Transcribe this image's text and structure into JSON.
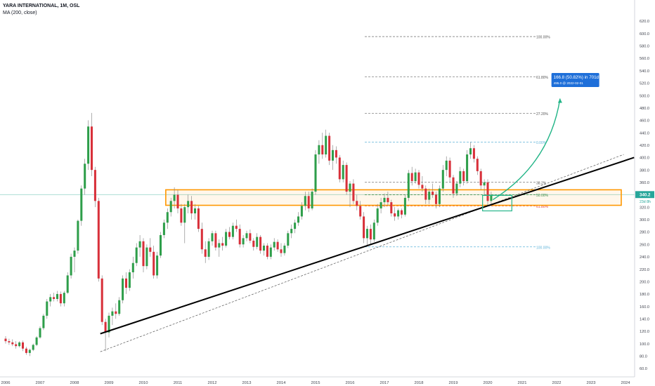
{
  "header": {
    "title": "YARA INTERNATIONAL, 1M, OSL",
    "indicator": "MA (200, close)"
  },
  "chart_data": {
    "type": "candlestick",
    "x_axis": {
      "labels": [
        "2006",
        "2007",
        "2008",
        "2009",
        "2010",
        "2011",
        "2012",
        "2013",
        "2014",
        "2015",
        "2016",
        "2017",
        "2018",
        "2019",
        "2020",
        "2021",
        "2022",
        "2023",
        "2024"
      ],
      "range": [
        2006.0,
        2024.3
      ]
    },
    "y_axis": {
      "labels": [
        "60.0",
        "80.0",
        "100.0",
        "120.0",
        "140.0",
        "160.0",
        "180.0",
        "200.0",
        "220.0",
        "240.0",
        "260.0",
        "280.0",
        "300.0",
        "320.0",
        "340.0",
        "360.0",
        "380.0",
        "400.0",
        "420.0",
        "440.0",
        "460.0",
        "480.0",
        "500.0",
        "520.0",
        "540.0",
        "560.0",
        "580.0",
        "600.0",
        "620.0"
      ],
      "range": [
        50,
        640
      ]
    },
    "price_label": {
      "value": 340.2,
      "text": "340.2",
      "countdown": "23d 8h"
    },
    "projection_label": {
      "line1": "166.8 (50.82%) in 701d",
      "line2": "495.0 @ 2022-02-01"
    },
    "fib_projection": [
      {
        "level": 595,
        "label": "100.00%"
      },
      {
        "level": 530,
        "label": "61.80%"
      },
      {
        "level": 471,
        "label": "27.20%"
      }
    ],
    "fib_retracement": [
      {
        "level": 425,
        "label": "0.00%"
      },
      {
        "level": 360,
        "label": "38.2%"
      },
      {
        "level": 340,
        "label": "50.00%"
      },
      {
        "level": 322,
        "label": "61.80%"
      },
      {
        "level": 256,
        "label": "100.00%"
      }
    ],
    "support_zone": {
      "x": [
        2010.65,
        2025.0
      ],
      "y": [
        323,
        348
      ]
    },
    "trendline_main": [
      [
        2008.75,
        116
      ],
      [
        2024.25,
        400
      ]
    ],
    "trendline_dashed": [
      [
        2008.75,
        87
      ],
      [
        2023.95,
        405
      ]
    ],
    "target_box": {
      "x": [
        2019.85,
        2020.7
      ],
      "y": [
        314,
        339
      ]
    },
    "projection_arrow": [
      [
        2020.15,
        332
      ],
      [
        2021.8,
        390
      ],
      [
        2022.1,
        495
      ]
    ],
    "candles": [
      {
        "t": 2006.0,
        "o": 108,
        "h": 112,
        "l": 100,
        "c": 104
      },
      {
        "t": 2006.1,
        "o": 104,
        "h": 108,
        "l": 98,
        "c": 102
      },
      {
        "t": 2006.2,
        "o": 102,
        "h": 107,
        "l": 96,
        "c": 99
      },
      {
        "t": 2006.3,
        "o": 99,
        "h": 104,
        "l": 92,
        "c": 96
      },
      {
        "t": 2006.4,
        "o": 96,
        "h": 104,
        "l": 94,
        "c": 102
      },
      {
        "t": 2006.5,
        "o": 102,
        "h": 105,
        "l": 88,
        "c": 92
      },
      {
        "t": 2006.6,
        "o": 92,
        "h": 95,
        "l": 82,
        "c": 85
      },
      {
        "t": 2006.7,
        "o": 85,
        "h": 92,
        "l": 80,
        "c": 90
      },
      {
        "t": 2006.8,
        "o": 90,
        "h": 100,
        "l": 88,
        "c": 98
      },
      {
        "t": 2006.9,
        "o": 98,
        "h": 112,
        "l": 96,
        "c": 110
      },
      {
        "t": 2007.0,
        "o": 110,
        "h": 128,
        "l": 108,
        "c": 125
      },
      {
        "t": 2007.1,
        "o": 125,
        "h": 148,
        "l": 122,
        "c": 145
      },
      {
        "t": 2007.2,
        "o": 145,
        "h": 172,
        "l": 140,
        "c": 168
      },
      {
        "t": 2007.3,
        "o": 168,
        "h": 180,
        "l": 160,
        "c": 175
      },
      {
        "t": 2007.4,
        "o": 175,
        "h": 182,
        "l": 168,
        "c": 172
      },
      {
        "t": 2007.5,
        "o": 172,
        "h": 185,
        "l": 168,
        "c": 180
      },
      {
        "t": 2007.6,
        "o": 180,
        "h": 184,
        "l": 160,
        "c": 165
      },
      {
        "t": 2007.7,
        "o": 165,
        "h": 185,
        "l": 160,
        "c": 182
      },
      {
        "t": 2007.8,
        "o": 182,
        "h": 215,
        "l": 180,
        "c": 210
      },
      {
        "t": 2007.9,
        "o": 210,
        "h": 245,
        "l": 205,
        "c": 240
      },
      {
        "t": 2008.0,
        "o": 240,
        "h": 255,
        "l": 215,
        "c": 250
      },
      {
        "t": 2008.1,
        "o": 250,
        "h": 300,
        "l": 245,
        "c": 298
      },
      {
        "t": 2008.2,
        "o": 298,
        "h": 355,
        "l": 290,
        "c": 350
      },
      {
        "t": 2008.3,
        "o": 350,
        "h": 398,
        "l": 340,
        "c": 390
      },
      {
        "t": 2008.4,
        "o": 390,
        "h": 460,
        "l": 380,
        "c": 450
      },
      {
        "t": 2008.5,
        "o": 450,
        "h": 472,
        "l": 370,
        "c": 380
      },
      {
        "t": 2008.6,
        "o": 380,
        "h": 385,
        "l": 320,
        "c": 330
      },
      {
        "t": 2008.7,
        "o": 330,
        "h": 335,
        "l": 200,
        "c": 205
      },
      {
        "t": 2008.8,
        "o": 205,
        "h": 210,
        "l": 130,
        "c": 135
      },
      {
        "t": 2008.9,
        "o": 135,
        "h": 140,
        "l": 88,
        "c": 118
      },
      {
        "t": 2009.0,
        "o": 118,
        "h": 150,
        "l": 110,
        "c": 145
      },
      {
        "t": 2009.1,
        "o": 145,
        "h": 158,
        "l": 130,
        "c": 152
      },
      {
        "t": 2009.2,
        "o": 152,
        "h": 165,
        "l": 140,
        "c": 148
      },
      {
        "t": 2009.3,
        "o": 148,
        "h": 175,
        "l": 145,
        "c": 170
      },
      {
        "t": 2009.4,
        "o": 170,
        "h": 210,
        "l": 165,
        "c": 205
      },
      {
        "t": 2009.5,
        "o": 205,
        "h": 215,
        "l": 180,
        "c": 190
      },
      {
        "t": 2009.6,
        "o": 190,
        "h": 220,
        "l": 185,
        "c": 215
      },
      {
        "t": 2009.7,
        "o": 215,
        "h": 240,
        "l": 205,
        "c": 230
      },
      {
        "t": 2009.8,
        "o": 230,
        "h": 262,
        "l": 225,
        "c": 255
      },
      {
        "t": 2009.9,
        "o": 255,
        "h": 275,
        "l": 240,
        "c": 265
      },
      {
        "t": 2010.0,
        "o": 265,
        "h": 270,
        "l": 215,
        "c": 225
      },
      {
        "t": 2010.1,
        "o": 225,
        "h": 260,
        "l": 220,
        "c": 255
      },
      {
        "t": 2010.2,
        "o": 255,
        "h": 270,
        "l": 240,
        "c": 248
      },
      {
        "t": 2010.3,
        "o": 248,
        "h": 258,
        "l": 205,
        "c": 210
      },
      {
        "t": 2010.4,
        "o": 210,
        "h": 248,
        "l": 205,
        "c": 242
      },
      {
        "t": 2010.5,
        "o": 242,
        "h": 280,
        "l": 238,
        "c": 275
      },
      {
        "t": 2010.6,
        "o": 275,
        "h": 300,
        "l": 270,
        "c": 295
      },
      {
        "t": 2010.7,
        "o": 295,
        "h": 318,
        "l": 285,
        "c": 312
      },
      {
        "t": 2010.8,
        "o": 312,
        "h": 335,
        "l": 305,
        "c": 330
      },
      {
        "t": 2010.9,
        "o": 330,
        "h": 352,
        "l": 318,
        "c": 340
      },
      {
        "t": 2011.0,
        "o": 340,
        "h": 348,
        "l": 310,
        "c": 318
      },
      {
        "t": 2011.1,
        "o": 318,
        "h": 325,
        "l": 290,
        "c": 295
      },
      {
        "t": 2011.2,
        "o": 295,
        "h": 325,
        "l": 262,
        "c": 320
      },
      {
        "t": 2011.3,
        "o": 320,
        "h": 340,
        "l": 310,
        "c": 330
      },
      {
        "t": 2011.4,
        "o": 330,
        "h": 338,
        "l": 300,
        "c": 310
      },
      {
        "t": 2011.5,
        "o": 310,
        "h": 325,
        "l": 300,
        "c": 318
      },
      {
        "t": 2011.6,
        "o": 318,
        "h": 322,
        "l": 280,
        "c": 285
      },
      {
        "t": 2011.7,
        "o": 285,
        "h": 295,
        "l": 245,
        "c": 252
      },
      {
        "t": 2011.8,
        "o": 252,
        "h": 265,
        "l": 230,
        "c": 240
      },
      {
        "t": 2011.9,
        "o": 240,
        "h": 270,
        "l": 235,
        "c": 265
      },
      {
        "t": 2012.0,
        "o": 265,
        "h": 282,
        "l": 258,
        "c": 278
      },
      {
        "t": 2012.1,
        "o": 278,
        "h": 282,
        "l": 250,
        "c": 255
      },
      {
        "t": 2012.2,
        "o": 255,
        "h": 268,
        "l": 240,
        "c": 262
      },
      {
        "t": 2012.3,
        "o": 262,
        "h": 272,
        "l": 250,
        "c": 258
      },
      {
        "t": 2012.4,
        "o": 258,
        "h": 285,
        "l": 255,
        "c": 280
      },
      {
        "t": 2012.5,
        "o": 280,
        "h": 288,
        "l": 268,
        "c": 272
      },
      {
        "t": 2012.6,
        "o": 272,
        "h": 295,
        "l": 268,
        "c": 290
      },
      {
        "t": 2012.7,
        "o": 290,
        "h": 300,
        "l": 280,
        "c": 285
      },
      {
        "t": 2012.8,
        "o": 285,
        "h": 292,
        "l": 255,
        "c": 260
      },
      {
        "t": 2012.9,
        "o": 260,
        "h": 275,
        "l": 255,
        "c": 270
      },
      {
        "t": 2013.0,
        "o": 270,
        "h": 282,
        "l": 265,
        "c": 278
      },
      {
        "t": 2013.1,
        "o": 278,
        "h": 284,
        "l": 262,
        "c": 266
      },
      {
        "t": 2013.2,
        "o": 266,
        "h": 270,
        "l": 250,
        "c": 256
      },
      {
        "t": 2013.3,
        "o": 256,
        "h": 278,
        "l": 252,
        "c": 272
      },
      {
        "t": 2013.4,
        "o": 272,
        "h": 275,
        "l": 245,
        "c": 250
      },
      {
        "t": 2013.5,
        "o": 250,
        "h": 262,
        "l": 242,
        "c": 258
      },
      {
        "t": 2013.6,
        "o": 258,
        "h": 262,
        "l": 236,
        "c": 240
      },
      {
        "t": 2013.7,
        "o": 240,
        "h": 260,
        "l": 236,
        "c": 255
      },
      {
        "t": 2013.8,
        "o": 255,
        "h": 270,
        "l": 250,
        "c": 264
      },
      {
        "t": 2013.9,
        "o": 264,
        "h": 268,
        "l": 248,
        "c": 252
      },
      {
        "t": 2014.0,
        "o": 252,
        "h": 262,
        "l": 240,
        "c": 246
      },
      {
        "t": 2014.1,
        "o": 246,
        "h": 262,
        "l": 242,
        "c": 258
      },
      {
        "t": 2014.2,
        "o": 258,
        "h": 282,
        "l": 254,
        "c": 278
      },
      {
        "t": 2014.3,
        "o": 278,
        "h": 292,
        "l": 270,
        "c": 285
      },
      {
        "t": 2014.4,
        "o": 285,
        "h": 300,
        "l": 278,
        "c": 295
      },
      {
        "t": 2014.5,
        "o": 295,
        "h": 312,
        "l": 290,
        "c": 305
      },
      {
        "t": 2014.6,
        "o": 305,
        "h": 328,
        "l": 300,
        "c": 322
      },
      {
        "t": 2014.7,
        "o": 322,
        "h": 345,
        "l": 315,
        "c": 338
      },
      {
        "t": 2014.8,
        "o": 338,
        "h": 345,
        "l": 312,
        "c": 318
      },
      {
        "t": 2014.9,
        "o": 318,
        "h": 350,
        "l": 315,
        "c": 345
      },
      {
        "t": 2015.0,
        "o": 345,
        "h": 412,
        "l": 340,
        "c": 405
      },
      {
        "t": 2015.1,
        "o": 405,
        "h": 428,
        "l": 390,
        "c": 420
      },
      {
        "t": 2015.2,
        "o": 420,
        "h": 440,
        "l": 398,
        "c": 405
      },
      {
        "t": 2015.3,
        "o": 405,
        "h": 445,
        "l": 400,
        "c": 435
      },
      {
        "t": 2015.4,
        "o": 435,
        "h": 440,
        "l": 388,
        "c": 395
      },
      {
        "t": 2015.5,
        "o": 395,
        "h": 420,
        "l": 380,
        "c": 412
      },
      {
        "t": 2015.6,
        "o": 412,
        "h": 418,
        "l": 390,
        "c": 400
      },
      {
        "t": 2015.7,
        "o": 400,
        "h": 404,
        "l": 360,
        "c": 365
      },
      {
        "t": 2015.8,
        "o": 365,
        "h": 395,
        "l": 360,
        "c": 388
      },
      {
        "t": 2015.9,
        "o": 388,
        "h": 392,
        "l": 340,
        "c": 345
      },
      {
        "t": 2016.0,
        "o": 345,
        "h": 362,
        "l": 320,
        "c": 358
      },
      {
        "t": 2016.1,
        "o": 358,
        "h": 365,
        "l": 325,
        "c": 330
      },
      {
        "t": 2016.2,
        "o": 330,
        "h": 340,
        "l": 315,
        "c": 322
      },
      {
        "t": 2016.3,
        "o": 322,
        "h": 330,
        "l": 300,
        "c": 305
      },
      {
        "t": 2016.4,
        "o": 305,
        "h": 312,
        "l": 262,
        "c": 270
      },
      {
        "t": 2016.5,
        "o": 270,
        "h": 290,
        "l": 256,
        "c": 285
      },
      {
        "t": 2016.6,
        "o": 285,
        "h": 292,
        "l": 260,
        "c": 268
      },
      {
        "t": 2016.7,
        "o": 268,
        "h": 300,
        "l": 264,
        "c": 295
      },
      {
        "t": 2016.8,
        "o": 295,
        "h": 325,
        "l": 290,
        "c": 318
      },
      {
        "t": 2016.9,
        "o": 318,
        "h": 335,
        "l": 310,
        "c": 328
      },
      {
        "t": 2017.0,
        "o": 328,
        "h": 342,
        "l": 320,
        "c": 335
      },
      {
        "t": 2017.1,
        "o": 335,
        "h": 345,
        "l": 322,
        "c": 328
      },
      {
        "t": 2017.2,
        "o": 328,
        "h": 332,
        "l": 305,
        "c": 310
      },
      {
        "t": 2017.3,
        "o": 310,
        "h": 320,
        "l": 298,
        "c": 305
      },
      {
        "t": 2017.4,
        "o": 305,
        "h": 318,
        "l": 300,
        "c": 315
      },
      {
        "t": 2017.5,
        "o": 315,
        "h": 318,
        "l": 302,
        "c": 308
      },
      {
        "t": 2017.6,
        "o": 308,
        "h": 340,
        "l": 305,
        "c": 335
      },
      {
        "t": 2017.7,
        "o": 335,
        "h": 380,
        "l": 330,
        "c": 375
      },
      {
        "t": 2017.8,
        "o": 375,
        "h": 385,
        "l": 355,
        "c": 362
      },
      {
        "t": 2017.9,
        "o": 362,
        "h": 382,
        "l": 358,
        "c": 376
      },
      {
        "t": 2018.0,
        "o": 376,
        "h": 380,
        "l": 350,
        "c": 356
      },
      {
        "t": 2018.1,
        "o": 356,
        "h": 370,
        "l": 345,
        "c": 350
      },
      {
        "t": 2018.2,
        "o": 350,
        "h": 355,
        "l": 325,
        "c": 332
      },
      {
        "t": 2018.3,
        "o": 332,
        "h": 350,
        "l": 325,
        "c": 345
      },
      {
        "t": 2018.4,
        "o": 345,
        "h": 358,
        "l": 335,
        "c": 340
      },
      {
        "t": 2018.5,
        "o": 340,
        "h": 345,
        "l": 318,
        "c": 325
      },
      {
        "t": 2018.6,
        "o": 325,
        "h": 355,
        "l": 320,
        "c": 350
      },
      {
        "t": 2018.7,
        "o": 350,
        "h": 388,
        "l": 345,
        "c": 380
      },
      {
        "t": 2018.8,
        "o": 380,
        "h": 402,
        "l": 370,
        "c": 395
      },
      {
        "t": 2018.9,
        "o": 395,
        "h": 400,
        "l": 360,
        "c": 368
      },
      {
        "t": 2019.0,
        "o": 368,
        "h": 372,
        "l": 335,
        "c": 342
      },
      {
        "t": 2019.1,
        "o": 342,
        "h": 362,
        "l": 338,
        "c": 358
      },
      {
        "t": 2019.2,
        "o": 358,
        "h": 385,
        "l": 352,
        "c": 378
      },
      {
        "t": 2019.3,
        "o": 378,
        "h": 382,
        "l": 355,
        "c": 362
      },
      {
        "t": 2019.4,
        "o": 362,
        "h": 412,
        "l": 358,
        "c": 405
      },
      {
        "t": 2019.5,
        "o": 405,
        "h": 425,
        "l": 398,
        "c": 415
      },
      {
        "t": 2019.6,
        "o": 415,
        "h": 420,
        "l": 392,
        "c": 398
      },
      {
        "t": 2019.7,
        "o": 398,
        "h": 402,
        "l": 372,
        "c": 378
      },
      {
        "t": 2019.8,
        "o": 378,
        "h": 382,
        "l": 348,
        "c": 355
      },
      {
        "t": 2019.9,
        "o": 355,
        "h": 365,
        "l": 338,
        "c": 360
      },
      {
        "t": 2020.0,
        "o": 360,
        "h": 365,
        "l": 322,
        "c": 330
      },
      {
        "t": 2020.1,
        "o": 330,
        "h": 345,
        "l": 322,
        "c": 340
      }
    ]
  }
}
